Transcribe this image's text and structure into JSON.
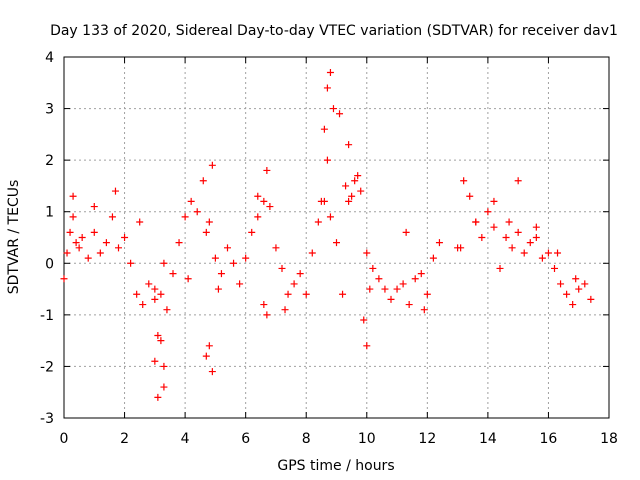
{
  "chart_data": {
    "type": "scatter",
    "title": "Day 133 of 2020, Sidereal Day-to-day VTEC variation (SDTVAR) for receiver dav1",
    "xlabel": "GPS time / hours",
    "ylabel": "SDTVAR / TECUs",
    "xlim": [
      0,
      18
    ],
    "ylim": [
      -3,
      4
    ],
    "xticks": [
      0,
      2,
      4,
      6,
      8,
      10,
      12,
      14,
      16,
      18
    ],
    "yticks": [
      -3,
      -2,
      -1,
      0,
      1,
      2,
      3,
      4
    ],
    "grid": true,
    "marker": "+",
    "colors": {
      "series": "#ff0000",
      "grid": "#a0a0a0",
      "axis": "#000000"
    },
    "series": [
      {
        "name": "SDTVAR",
        "x": [
          0.0,
          0.1,
          0.2,
          0.3,
          0.4,
          0.5,
          0.6,
          0.8,
          1.0,
          1.2,
          1.4,
          1.6,
          1.8,
          2.0,
          2.2,
          2.4,
          2.6,
          2.8,
          3.0,
          3.1,
          3.2,
          3.3,
          3.4,
          3.6,
          3.8,
          4.0,
          4.2,
          4.4,
          4.6,
          4.8,
          5.0,
          5.2,
          5.4,
          5.6,
          5.8,
          6.0,
          6.2,
          6.4,
          6.6,
          6.8,
          7.0,
          7.2,
          7.4,
          7.6,
          7.8,
          8.0,
          8.2,
          8.4,
          8.6,
          8.7,
          8.8,
          9.0,
          9.2,
          9.4,
          9.6,
          9.8,
          10.0,
          10.2,
          10.4,
          10.6,
          10.8,
          11.0,
          11.2,
          11.4,
          11.6,
          11.8,
          12.0,
          12.2,
          12.4,
          13.0,
          13.2,
          13.4,
          13.6,
          13.8,
          14.0,
          14.2,
          14.4,
          14.6,
          14.8,
          15.0,
          15.2,
          15.4,
          15.6,
          15.8,
          16.0,
          16.2,
          16.4,
          16.6,
          16.8,
          17.0,
          17.2,
          17.4,
          0.3,
          1.0,
          1.7,
          2.5,
          3.0,
          3.2,
          3.3,
          4.1,
          4.7,
          4.9,
          5.1,
          6.4,
          6.7,
          7.3,
          8.7,
          8.8,
          9.3,
          9.5,
          9.9,
          10.1,
          11.3,
          11.9,
          13.1,
          13.6,
          14.2,
          14.7,
          15.0,
          15.6,
          16.3,
          16.9,
          3.1,
          3.3,
          3.0,
          4.8,
          4.9,
          4.7,
          8.5,
          8.6,
          8.9,
          9.1,
          9.4,
          9.7,
          10.0,
          6.6,
          6.7
        ],
        "y": [
          -0.3,
          0.2,
          0.6,
          0.9,
          0.4,
          0.3,
          0.5,
          0.1,
          0.6,
          0.2,
          0.4,
          0.9,
          0.3,
          0.5,
          0.0,
          -0.6,
          -0.8,
          -0.4,
          -0.7,
          -1.4,
          -0.6,
          0.0,
          -0.9,
          -0.2,
          0.4,
          0.9,
          1.2,
          1.0,
          1.6,
          0.8,
          0.1,
          -0.2,
          0.3,
          0.0,
          -0.4,
          0.1,
          0.6,
          0.9,
          1.2,
          1.1,
          0.3,
          -0.1,
          -0.6,
          -0.4,
          -0.2,
          -0.6,
          0.2,
          0.8,
          1.2,
          2.0,
          0.9,
          0.4,
          -0.6,
          1.2,
          1.6,
          1.4,
          0.2,
          -0.1,
          -0.3,
          -0.5,
          -0.7,
          -0.5,
          -0.4,
          -0.8,
          -0.3,
          -0.2,
          -0.6,
          0.1,
          0.4,
          0.3,
          1.6,
          1.3,
          0.8,
          0.5,
          1.0,
          0.7,
          -0.1,
          0.5,
          0.3,
          0.6,
          0.2,
          0.4,
          0.7,
          0.1,
          0.2,
          -0.1,
          -0.4,
          -0.6,
          -0.8,
          -0.5,
          -0.4,
          -0.7,
          1.3,
          1.1,
          1.4,
          0.8,
          -0.5,
          -1.5,
          -2.0,
          -0.3,
          0.6,
          1.9,
          -0.5,
          1.3,
          1.8,
          -0.9,
          3.4,
          3.7,
          1.5,
          1.3,
          -1.1,
          -0.5,
          0.6,
          -0.9,
          0.3,
          0.8,
          1.2,
          0.8,
          1.6,
          0.5,
          0.2,
          -0.3,
          -2.6,
          -2.4,
          -1.9,
          -1.6,
          -2.1,
          -1.8,
          1.2,
          2.6,
          3.0,
          2.9,
          2.3,
          1.7,
          -1.6,
          -0.8,
          -1.0
        ]
      }
    ]
  }
}
